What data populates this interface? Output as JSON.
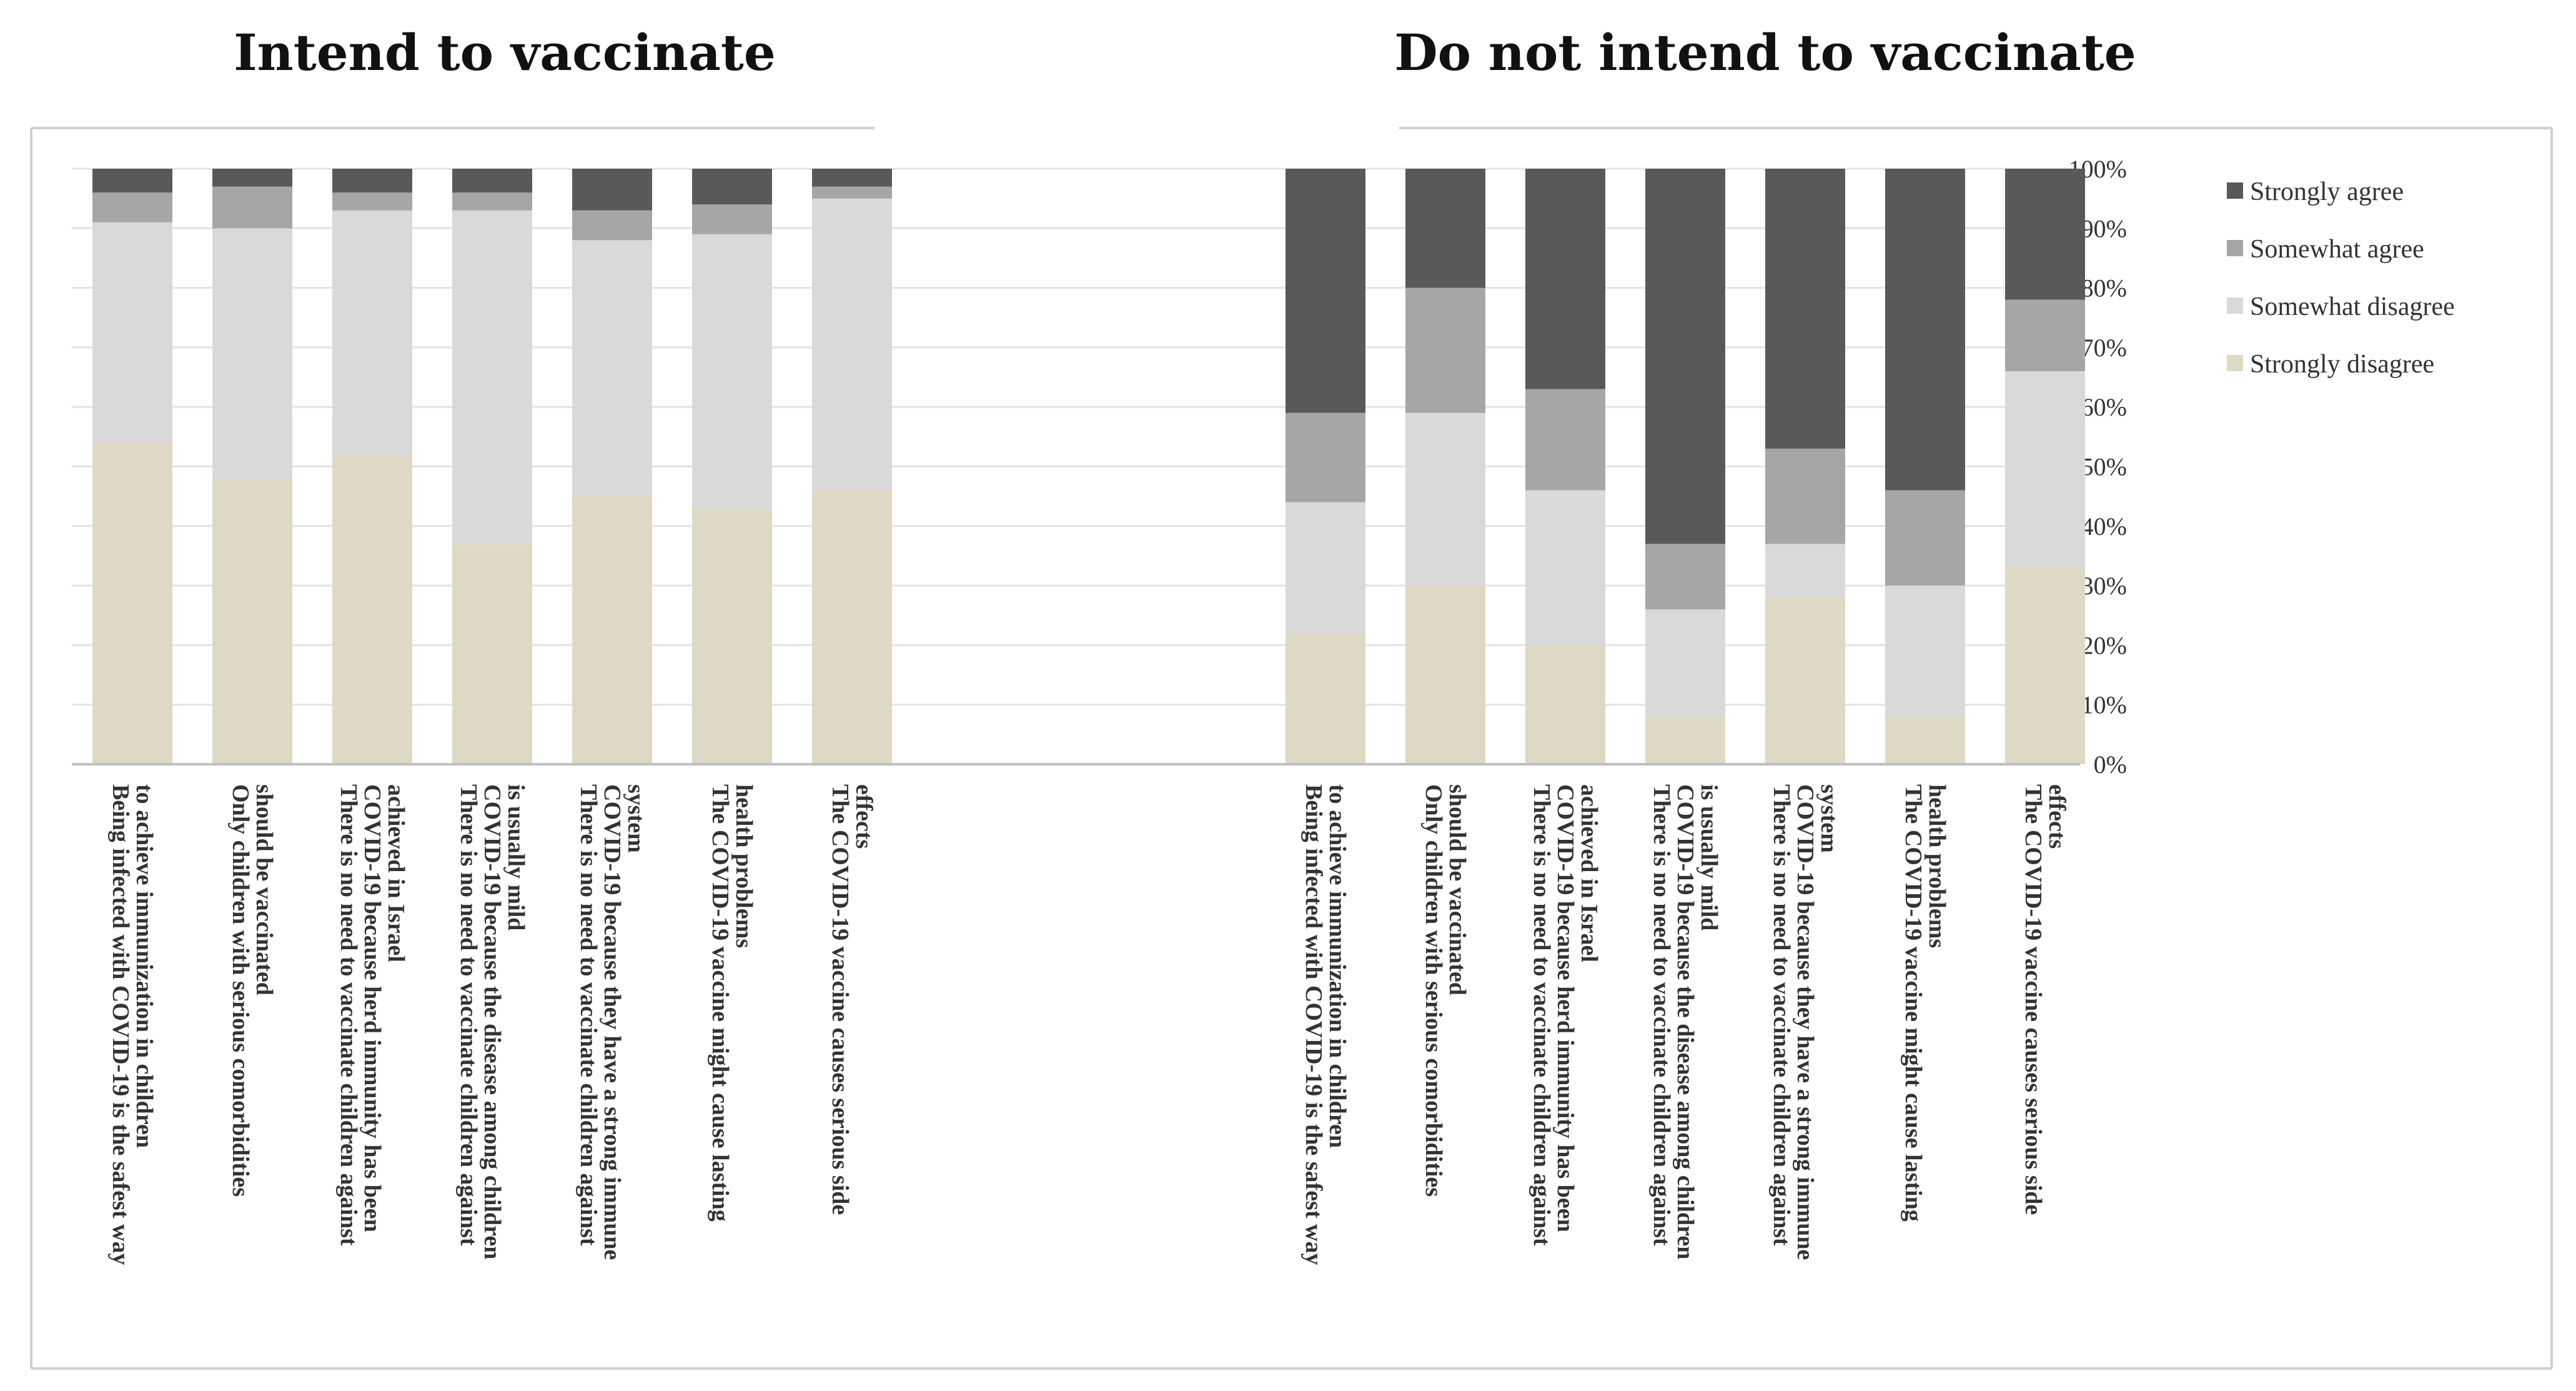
{
  "chart_data": {
    "type": "bar",
    "stacked": true,
    "percent": true,
    "ylim": [
      0,
      100
    ],
    "yticks": [
      "0%",
      "10%",
      "20%",
      "30%",
      "40%",
      "50%",
      "60%",
      "70%",
      "80%",
      "90%",
      "100%"
    ],
    "legend_position": "right",
    "legend": [
      "Strongly agree",
      "Somewhat agree",
      "Somewhat disagree",
      "Strongly disagree"
    ],
    "colors": {
      "Strongly agree": "#595959",
      "Somewhat agree": "#a6a6a6",
      "Somewhat disagree": "#d9d9d9",
      "Strongly disagree": "#ddd9c4"
    },
    "categories": [
      [
        "Being infected with COVID-19 is the safest way",
        "to achieve immunization in children"
      ],
      [
        "Only children with serious comorbidities",
        "should be vaccinated"
      ],
      [
        "There is no need to vaccinate children against",
        "COVID-19 because herd immunity has been",
        "achieved in Israel"
      ],
      [
        "There is no need to vaccinate children against",
        "COVID-19 because the disease among children",
        "is usually mild"
      ],
      [
        "There is no need to vaccinate children against",
        "COVID-19 because they have a strong immune",
        "system"
      ],
      [
        "The COVID-19 vaccine might cause lasting",
        "health problems"
      ],
      [
        "The COVID-19 vaccine causes serious side",
        "effects"
      ]
    ],
    "panels": [
      {
        "title": "Intend to vaccinate",
        "series": [
          {
            "name": "Strongly disagree",
            "values": [
              54,
              48,
              52,
              37,
              45,
              43,
              46
            ]
          },
          {
            "name": "Somewhat disagree",
            "values": [
              37,
              42,
              41,
              56,
              43,
              46,
              49
            ]
          },
          {
            "name": "Somewhat agree",
            "values": [
              5,
              7,
              3,
              3,
              5,
              5,
              2
            ]
          },
          {
            "name": "Strongly agree",
            "values": [
              4,
              3,
              4,
              4,
              7,
              6,
              3
            ]
          }
        ]
      },
      {
        "title": "Do not intend to vaccinate",
        "series": [
          {
            "name": "Strongly disagree",
            "values": [
              22,
              30,
              20,
              8,
              28,
              8,
              33
            ]
          },
          {
            "name": "Somewhat disagree",
            "values": [
              22,
              29,
              26,
              18,
              9,
              22,
              33
            ]
          },
          {
            "name": "Somewhat agree",
            "values": [
              15,
              21,
              17,
              11,
              16,
              16,
              12
            ]
          },
          {
            "name": "Strongly agree",
            "values": [
              41,
              20,
              37,
              63,
              47,
              54,
              22
            ]
          }
        ]
      }
    ]
  }
}
